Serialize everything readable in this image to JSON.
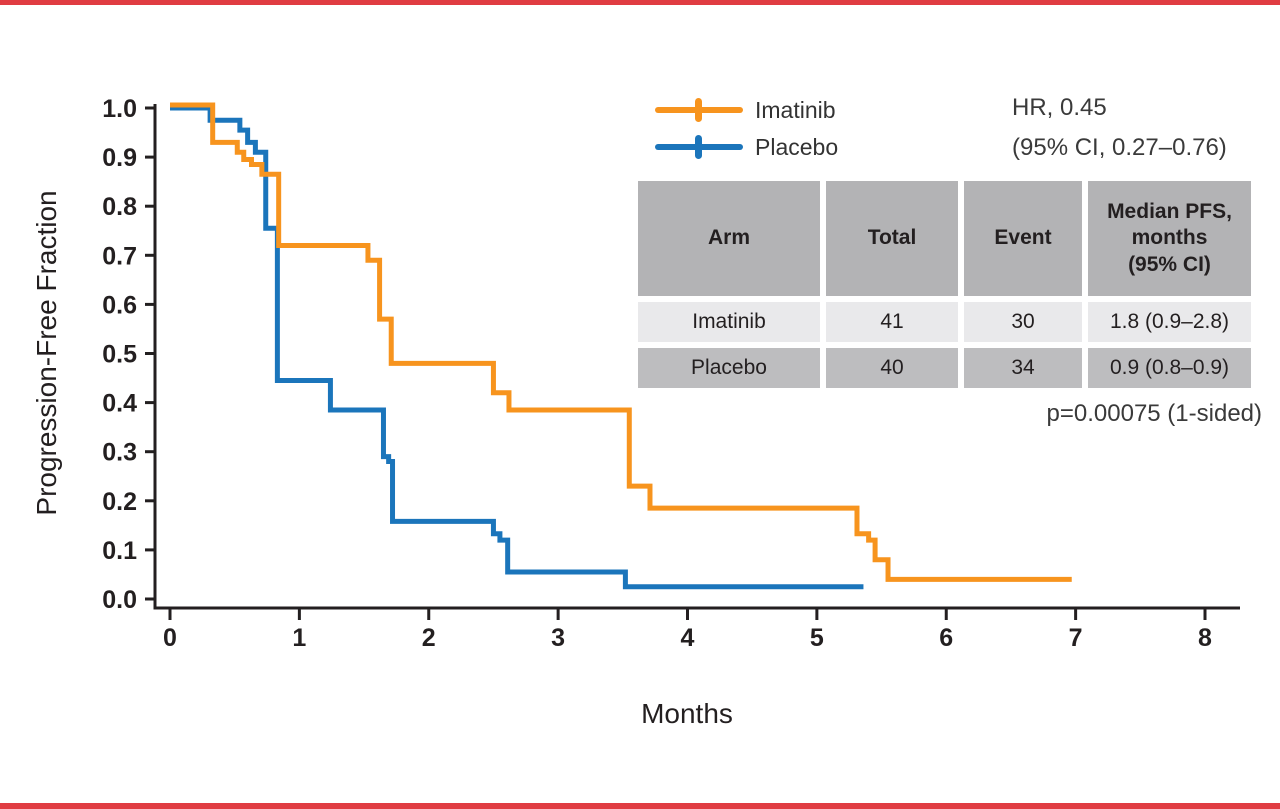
{
  "page": {
    "background_color": "#ffffff",
    "top_border_color": "#E03C42",
    "bottom_border_color": "#E03C42",
    "text_color": "#231F20"
  },
  "chart_data": {
    "type": "line",
    "subtype": "kaplan_meier_step",
    "title": "",
    "xlabel": "Months",
    "ylabel": "Progression-Free Fraction",
    "xlim": [
      0,
      8
    ],
    "ylim": [
      0.0,
      1.0
    ],
    "xticks": [
      0,
      1,
      2,
      3,
      4,
      5,
      6,
      7,
      8
    ],
    "yticks": [
      0.0,
      0.1,
      0.2,
      0.3,
      0.4,
      0.5,
      0.6,
      0.7,
      0.8,
      0.9,
      1.0
    ],
    "grid": false,
    "legend_position": "top-right-inside",
    "series": [
      {
        "name": "Imatinib",
        "color": "#F7941E",
        "marker": "censor-tick",
        "end_x": 6.97,
        "steps": [
          [
            0,
            1.0
          ],
          [
            0.33,
            0.93
          ],
          [
            0.52,
            0.91
          ],
          [
            0.57,
            0.895
          ],
          [
            0.63,
            0.885
          ],
          [
            0.71,
            0.865
          ],
          [
            0.84,
            0.72
          ],
          [
            1.53,
            0.69
          ],
          [
            1.62,
            0.57
          ],
          [
            1.71,
            0.48
          ],
          [
            2.5,
            0.42
          ],
          [
            2.62,
            0.385
          ],
          [
            3.55,
            0.23
          ],
          [
            3.71,
            0.185
          ],
          [
            5.31,
            0.133
          ],
          [
            5.4,
            0.12
          ],
          [
            5.45,
            0.08
          ],
          [
            5.55,
            0.04
          ]
        ]
      },
      {
        "name": "Placebo",
        "color": "#1B75BB",
        "marker": "censor-tick",
        "end_x": 5.36,
        "steps": [
          [
            0,
            1.0
          ],
          [
            0.31,
            0.975
          ],
          [
            0.54,
            0.955
          ],
          [
            0.6,
            0.93
          ],
          [
            0.66,
            0.91
          ],
          [
            0.74,
            0.755
          ],
          [
            0.83,
            0.445
          ],
          [
            1.24,
            0.385
          ],
          [
            1.65,
            0.29
          ],
          [
            1.69,
            0.28
          ],
          [
            1.72,
            0.158
          ],
          [
            2.5,
            0.133
          ],
          [
            2.55,
            0.12
          ],
          [
            2.61,
            0.055
          ],
          [
            3.52,
            0.025
          ]
        ]
      }
    ]
  },
  "stats": {
    "hr": "HR, 0.45",
    "ci": "(95% CI, 0.27–0.76)",
    "p_value": "p=0.00075 (1-sided)"
  },
  "table": {
    "headers": [
      "Arm",
      "Total",
      "Event",
      "Median PFS,\nmonths\n(95% CI)"
    ],
    "rows": [
      {
        "arm": "Imatinib",
        "total": "41",
        "event": "30",
        "median_pfs": "1.8 (0.9–2.8)"
      },
      {
        "arm": "Placebo",
        "total": "40",
        "event": "34",
        "median_pfs": "0.9 (0.8–0.9)"
      }
    ]
  }
}
